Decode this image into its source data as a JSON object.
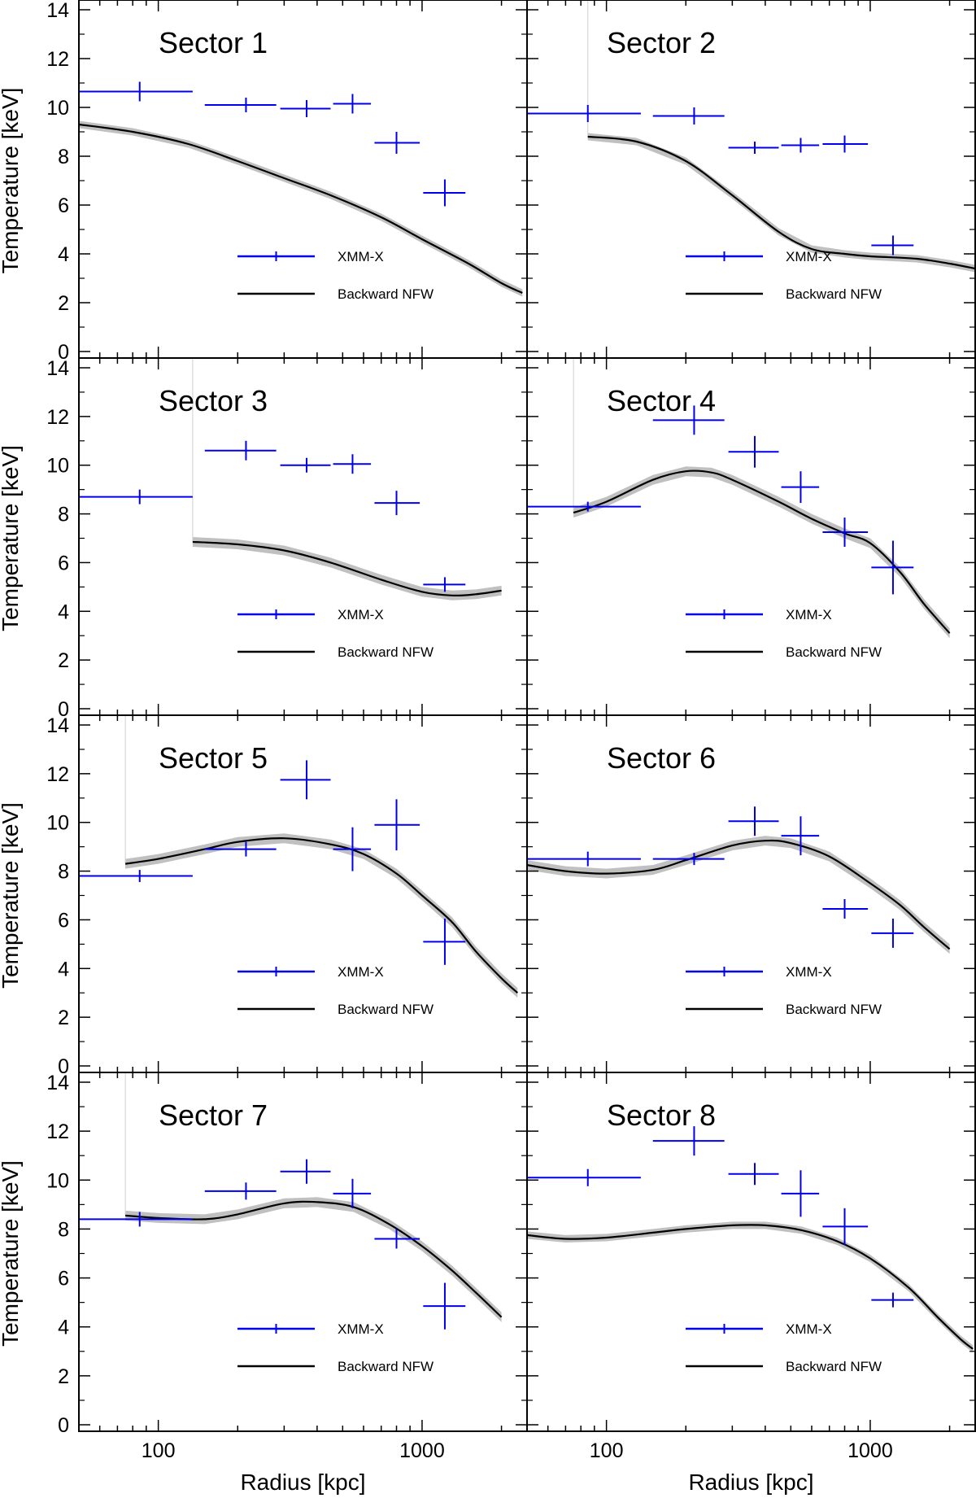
{
  "chart_data": {
    "type": "scatter",
    "layout": "4x2 grid of panels with shared axes",
    "xlabel": "Radius [kpc]",
    "ylabel": "Temperature [keV]",
    "xscale": "log",
    "xlim": [
      50,
      2500
    ],
    "ylim": [
      0,
      14
    ],
    "xticks": [
      100,
      1000
    ],
    "xtick_labels": [
      "100",
      "1000"
    ],
    "yticks": [
      0,
      2,
      4,
      6,
      8,
      10,
      12,
      14
    ],
    "ytick_labels": [
      "0",
      "2",
      "4",
      "6",
      "8",
      "10",
      "12",
      "14"
    ],
    "legend": {
      "placement": "lower-right",
      "entries": [
        {
          "label": "XMM-X",
          "style": "blue-cross"
        },
        {
          "label": "Backward NFW",
          "style": "black-line"
        }
      ]
    },
    "colors": {
      "data": "#0000ee",
      "model": "#000000",
      "band": "#c0c0c0"
    },
    "panels": [
      {
        "title": "Sector 1",
        "xmm": [
          {
            "r": 85,
            "rlo": 50,
            "rhi": 135,
            "t": 10.65,
            "terr": 0.4
          },
          {
            "r": 215,
            "rlo": 150,
            "rhi": 280,
            "t": 10.1,
            "terr": 0.3
          },
          {
            "r": 365,
            "rlo": 290,
            "rhi": 450,
            "t": 9.95,
            "terr": 0.35
          },
          {
            "r": 545,
            "rlo": 460,
            "rhi": 640,
            "t": 10.15,
            "terr": 0.4
          },
          {
            "r": 800,
            "rlo": 660,
            "rhi": 980,
            "t": 8.55,
            "terr": 0.45
          },
          {
            "r": 1220,
            "rlo": 1010,
            "rhi": 1460,
            "t": 6.5,
            "terr": 0.55
          }
        ],
        "model": {
          "r": [
            50,
            80,
            130,
            200,
            300,
            450,
            700,
            1000,
            1500,
            2000,
            2400
          ],
          "t": [
            9.3,
            9.0,
            8.5,
            7.8,
            7.1,
            6.4,
            5.5,
            4.6,
            3.6,
            2.8,
            2.4
          ],
          "band": 0.15
        }
      },
      {
        "title": "Sector 2",
        "xmm": [
          {
            "r": 85,
            "rlo": 50,
            "rhi": 135,
            "t": 9.75,
            "terr": 0.35
          },
          {
            "r": 215,
            "rlo": 150,
            "rhi": 280,
            "t": 9.65,
            "terr": 0.35
          },
          {
            "r": 365,
            "rlo": 290,
            "rhi": 450,
            "t": 8.35,
            "terr": 0.25
          },
          {
            "r": 545,
            "rlo": 460,
            "rhi": 640,
            "t": 8.45,
            "terr": 0.3
          },
          {
            "r": 800,
            "rlo": 660,
            "rhi": 980,
            "t": 8.5,
            "terr": 0.35
          },
          {
            "r": 1220,
            "rlo": 1010,
            "rhi": 1460,
            "t": 4.35,
            "terr": 0.4
          }
        ],
        "model": {
          "r": [
            85,
            130,
            200,
            300,
            450,
            600,
            800,
            1000,
            1500,
            2000,
            2500
          ],
          "t": [
            8.8,
            8.6,
            7.8,
            6.4,
            4.9,
            4.2,
            4.0,
            3.9,
            3.8,
            3.6,
            3.4
          ],
          "band": 0.15
        }
      },
      {
        "title": "Sector 3",
        "xmm": [
          {
            "r": 85,
            "rlo": 50,
            "rhi": 135,
            "t": 8.7,
            "terr": 0.3
          },
          {
            "r": 215,
            "rlo": 150,
            "rhi": 280,
            "t": 10.6,
            "terr": 0.4
          },
          {
            "r": 365,
            "rlo": 290,
            "rhi": 450,
            "t": 10.0,
            "terr": 0.3
          },
          {
            "r": 545,
            "rlo": 460,
            "rhi": 640,
            "t": 10.05,
            "terr": 0.4
          },
          {
            "r": 800,
            "rlo": 660,
            "rhi": 980,
            "t": 8.45,
            "terr": 0.5
          },
          {
            "r": 1220,
            "rlo": 1010,
            "rhi": 1460,
            "t": 5.1,
            "terr": 0.3
          }
        ],
        "model": {
          "r": [
            135,
            200,
            300,
            450,
            700,
            1000,
            1300,
            1600,
            2000
          ],
          "t": [
            6.85,
            6.75,
            6.5,
            6.0,
            5.3,
            4.8,
            4.65,
            4.7,
            4.85
          ],
          "band": 0.2
        }
      },
      {
        "title": "Sector 4",
        "xmm": [
          {
            "r": 85,
            "rlo": 50,
            "rhi": 135,
            "t": 8.3,
            "terr": 0.2
          },
          {
            "r": 215,
            "rlo": 150,
            "rhi": 280,
            "t": 11.85,
            "terr": 0.6
          },
          {
            "r": 365,
            "rlo": 290,
            "rhi": 450,
            "t": 10.55,
            "terr": 0.65
          },
          {
            "r": 545,
            "rlo": 460,
            "rhi": 640,
            "t": 9.1,
            "terr": 0.65
          },
          {
            "r": 800,
            "rlo": 660,
            "rhi": 980,
            "t": 7.25,
            "terr": 0.6
          },
          {
            "r": 1220,
            "rlo": 1010,
            "rhi": 1460,
            "t": 5.8,
            "terr": 1.1
          }
        ],
        "model": {
          "r": [
            75,
            100,
            150,
            200,
            250,
            300,
            450,
            600,
            800,
            1000,
            1300,
            1600,
            2000
          ],
          "t": [
            8.05,
            8.5,
            9.4,
            9.75,
            9.7,
            9.4,
            8.5,
            7.8,
            7.2,
            6.8,
            5.6,
            4.3,
            3.1
          ],
          "band": 0.2
        }
      },
      {
        "title": "Sector 5",
        "xmm": [
          {
            "r": 85,
            "rlo": 50,
            "rhi": 135,
            "t": 7.8,
            "terr": 0.25
          },
          {
            "r": 215,
            "rlo": 150,
            "rhi": 280,
            "t": 8.9,
            "terr": 0.3
          },
          {
            "r": 365,
            "rlo": 290,
            "rhi": 450,
            "t": 11.75,
            "terr": 0.8
          },
          {
            "r": 545,
            "rlo": 460,
            "rhi": 640,
            "t": 8.9,
            "terr": 0.9
          },
          {
            "r": 800,
            "rlo": 660,
            "rhi": 980,
            "t": 9.9,
            "terr": 1.05
          },
          {
            "r": 1220,
            "rlo": 1010,
            "rhi": 1460,
            "t": 5.1,
            "terr": 0.95
          }
        ],
        "model": {
          "r": [
            75,
            100,
            150,
            200,
            300,
            450,
            600,
            800,
            1000,
            1300,
            1600,
            2000,
            2300
          ],
          "t": [
            8.3,
            8.5,
            8.9,
            9.2,
            9.35,
            9.1,
            8.7,
            7.9,
            7.0,
            5.9,
            4.7,
            3.6,
            3.0
          ],
          "band": 0.2
        }
      },
      {
        "title": "Sector 6",
        "xmm": [
          {
            "r": 85,
            "rlo": 50,
            "rhi": 135,
            "t": 8.5,
            "terr": 0.3
          },
          {
            "r": 215,
            "rlo": 150,
            "rhi": 280,
            "t": 8.5,
            "terr": 0.25
          },
          {
            "r": 365,
            "rlo": 290,
            "rhi": 450,
            "t": 10.05,
            "terr": 0.6
          },
          {
            "r": 545,
            "rlo": 460,
            "rhi": 640,
            "t": 9.45,
            "terr": 0.8
          },
          {
            "r": 800,
            "rlo": 660,
            "rhi": 980,
            "t": 6.45,
            "terr": 0.4
          },
          {
            "r": 1220,
            "rlo": 1010,
            "rhi": 1460,
            "t": 5.45,
            "terr": 0.6
          }
        ],
        "model": {
          "r": [
            50,
            70,
            100,
            150,
            200,
            300,
            400,
            500,
            700,
            1000,
            1300,
            1600,
            2000
          ],
          "t": [
            8.25,
            8.0,
            7.9,
            8.05,
            8.45,
            9.05,
            9.25,
            9.15,
            8.6,
            7.5,
            6.6,
            5.7,
            4.8
          ],
          "band": 0.2
        }
      },
      {
        "title": "Sector 7",
        "xmm": [
          {
            "r": 85,
            "rlo": 50,
            "rhi": 135,
            "t": 8.4,
            "terr": 0.3
          },
          {
            "r": 215,
            "rlo": 150,
            "rhi": 280,
            "t": 9.55,
            "terr": 0.35
          },
          {
            "r": 365,
            "rlo": 290,
            "rhi": 450,
            "t": 10.35,
            "terr": 0.5
          },
          {
            "r": 545,
            "rlo": 460,
            "rhi": 640,
            "t": 9.45,
            "terr": 0.6
          },
          {
            "r": 800,
            "rlo": 660,
            "rhi": 980,
            "t": 7.6,
            "terr": 0.4
          },
          {
            "r": 1220,
            "rlo": 1010,
            "rhi": 1460,
            "t": 4.85,
            "terr": 0.95
          }
        ],
        "model": {
          "r": [
            75,
            100,
            150,
            200,
            300,
            400,
            550,
            750,
            1000,
            1300,
            1600,
            2000
          ],
          "t": [
            8.55,
            8.45,
            8.4,
            8.6,
            9.05,
            9.1,
            8.9,
            8.2,
            7.3,
            6.3,
            5.4,
            4.4
          ],
          "band": 0.2
        }
      },
      {
        "title": "Sector 8",
        "xmm": [
          {
            "r": 85,
            "rlo": 50,
            "rhi": 135,
            "t": 10.1,
            "terr": 0.35
          },
          {
            "r": 215,
            "rlo": 150,
            "rhi": 280,
            "t": 11.6,
            "terr": 0.6
          },
          {
            "r": 365,
            "rlo": 290,
            "rhi": 450,
            "t": 10.25,
            "terr": 0.45
          },
          {
            "r": 545,
            "rlo": 460,
            "rhi": 640,
            "t": 9.45,
            "terr": 0.95
          },
          {
            "r": 800,
            "rlo": 660,
            "rhi": 980,
            "t": 8.1,
            "terr": 0.75
          },
          {
            "r": 1220,
            "rlo": 1010,
            "rhi": 1460,
            "t": 5.1,
            "terr": 0.3
          }
        ],
        "model": {
          "r": [
            50,
            70,
            100,
            150,
            200,
            300,
            400,
            550,
            750,
            1000,
            1400,
            1800,
            2200,
            2450
          ],
          "t": [
            7.75,
            7.6,
            7.65,
            7.85,
            8.0,
            8.15,
            8.15,
            7.95,
            7.5,
            6.8,
            5.6,
            4.4,
            3.5,
            3.1
          ],
          "band": 0.15
        }
      }
    ]
  }
}
